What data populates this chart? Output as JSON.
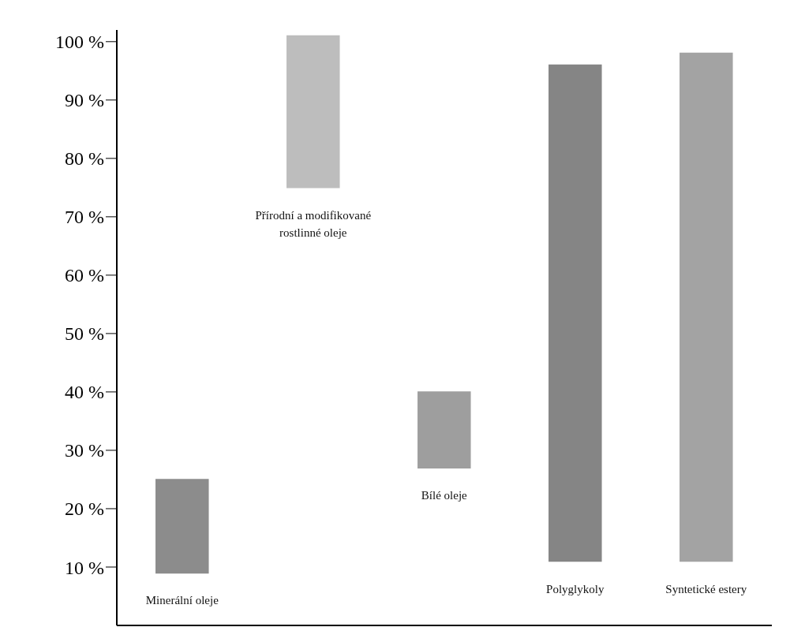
{
  "chart_data": {
    "type": "bar",
    "categories": [
      "Minerální oleje",
      "Přírodní a modifikované rostlinné oleje",
      "Bílé oleje",
      "Polyglykoly",
      "Syntetické estery"
    ],
    "base": [
      9,
      75,
      27,
      11,
      11
    ],
    "values": [
      16,
      26,
      13,
      85,
      87
    ],
    "colors": [
      "#8c8c8c",
      "#bdbdbd",
      "#9e9e9e",
      "#858585",
      "#a3a3a3"
    ],
    "ylim": [
      0,
      102
    ],
    "yticks": [
      {
        "value": 10,
        "label": "10 %"
      },
      {
        "value": 20,
        "label": "20 %"
      },
      {
        "value": 30,
        "label": "30 %"
      },
      {
        "value": 40,
        "label": "40 %"
      },
      {
        "value": 50,
        "label": "50 %"
      },
      {
        "value": 60,
        "label": "60 %"
      },
      {
        "value": 70,
        "label": "70 %"
      },
      {
        "value": 80,
        "label": "80 %"
      },
      {
        "value": 90,
        "label": "90 %"
      },
      {
        "value": 100,
        "label": "100 %"
      }
    ],
    "tick_labels": "y",
    "grid": false,
    "legend": false
  }
}
